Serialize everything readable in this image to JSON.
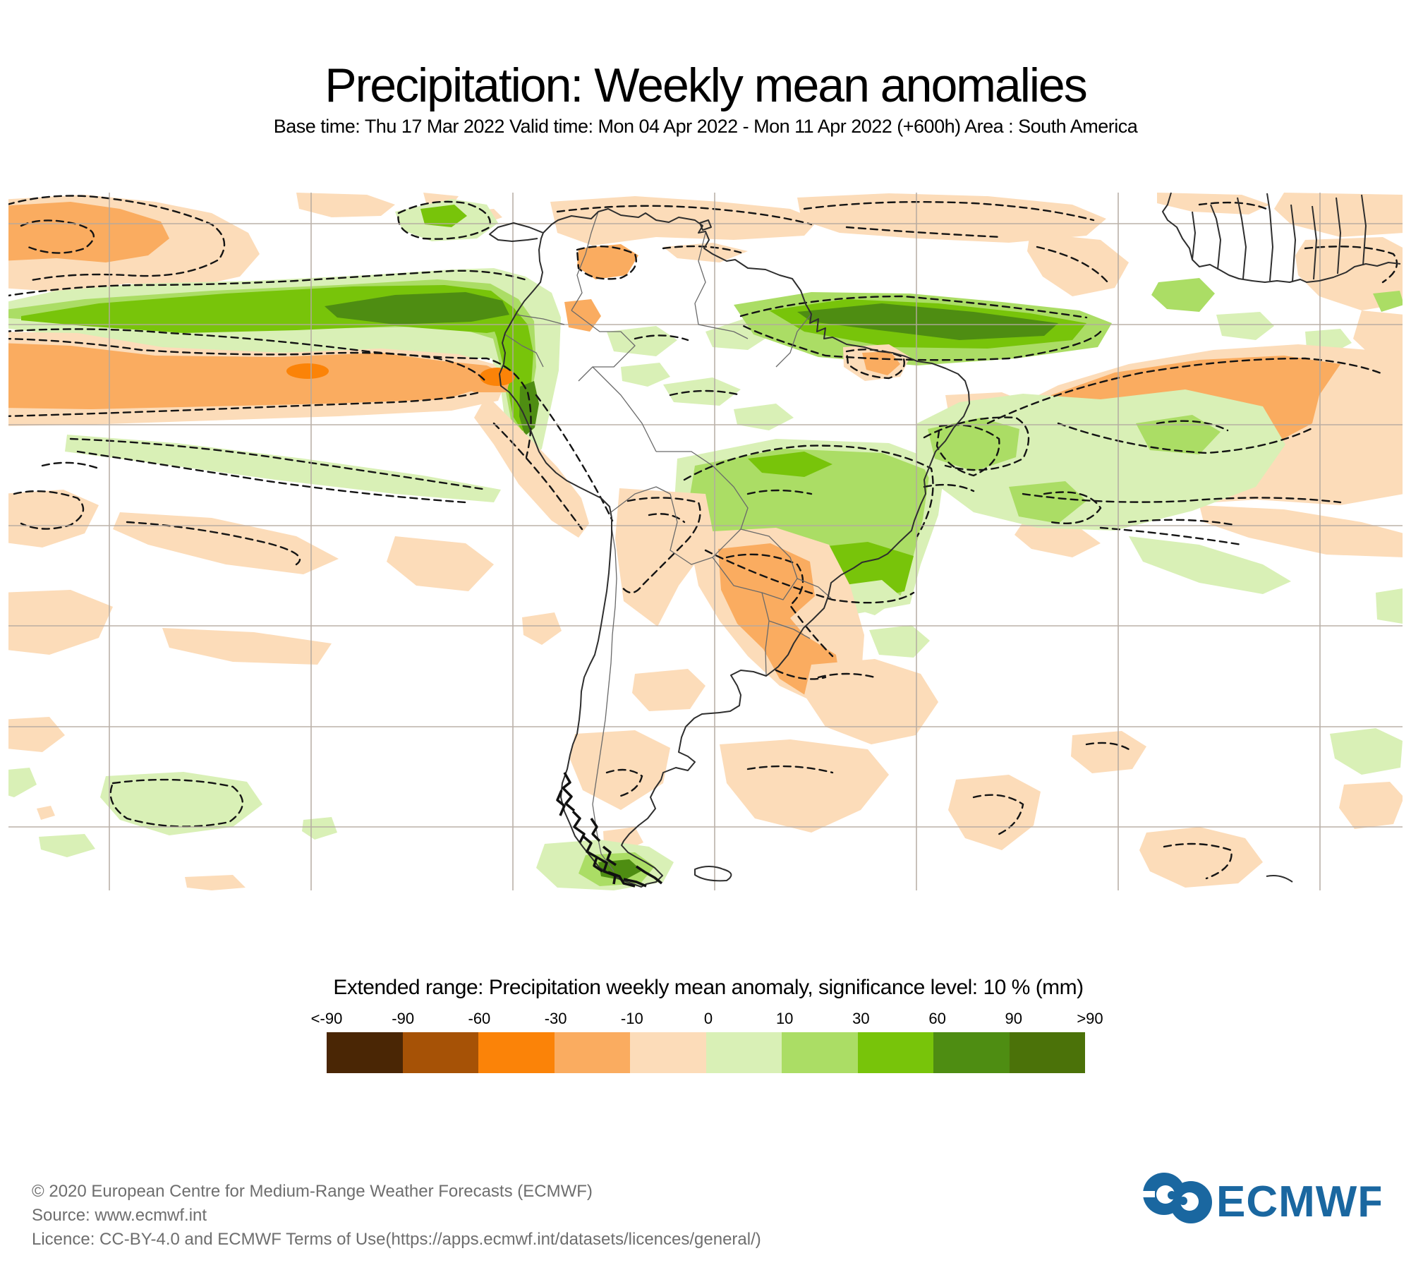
{
  "header": {
    "title": "Precipitation: Weekly mean anomalies",
    "subtitle": "Base time: Thu 17 Mar 2022 Valid time: Mon 04 Apr 2022 - Mon 11 Apr 2022 (+600h) Area : South America"
  },
  "map": {
    "area": "South America",
    "grid_color": "#b3a9a0",
    "coast_color": "#2e2e2e",
    "contour_style": "dashed significance contours"
  },
  "legend": {
    "title": "Extended range: Precipitation weekly mean anomaly, significance level: 10 % (mm)",
    "tick_labels": [
      "<-90",
      "-90",
      "-60",
      "-30",
      "-10",
      "0",
      "10",
      "30",
      "60",
      "90",
      ">90"
    ],
    "colors": [
      "#4A2605",
      "#A65206",
      "#FB8308",
      "#FAAC60",
      "#FCDCB9",
      "#D9F0B6",
      "#ABDD65",
      "#78C40A",
      "#4E8D12",
      "#4B7209"
    ]
  },
  "footer": {
    "line1": "© 2020 European Centre for Medium-Range Weather Forecasts (ECMWF)",
    "line2": "Source: www.ecmwf.int",
    "line3": "Licence: CC-BY-4.0 and ECMWF Terms of Use(https://apps.ecmwf.int/datasets/licences/general/)",
    "logo_text": "ECMWF",
    "logo_color": "#1A67A0"
  }
}
